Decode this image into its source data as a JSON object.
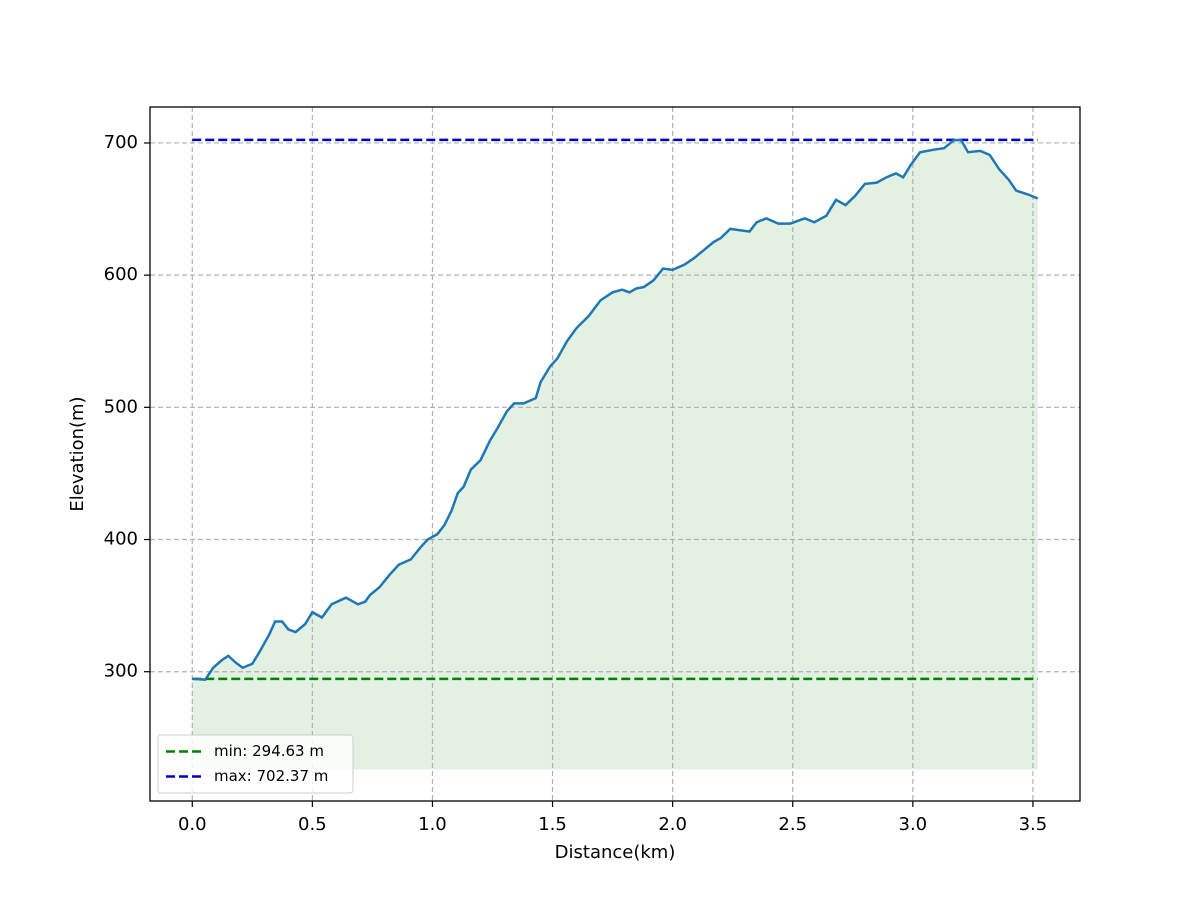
{
  "chart_data": {
    "type": "line",
    "x_label": "Distance(km)",
    "y_label": "Elevation(m)",
    "x": [
      0,
      0.054,
      0.087,
      0.125,
      0.15,
      0.18,
      0.21,
      0.25,
      0.28,
      0.32,
      0.345,
      0.374,
      0.4,
      0.43,
      0.47,
      0.5,
      0.54,
      0.58,
      0.64,
      0.69,
      0.72,
      0.74,
      0.78,
      0.82,
      0.86,
      0.91,
      0.95,
      0.98,
      1.02,
      1.05,
      1.08,
      1.105,
      1.13,
      1.16,
      1.2,
      1.24,
      1.27,
      1.31,
      1.34,
      1.38,
      1.43,
      1.45,
      1.49,
      1.52,
      1.56,
      1.6,
      1.65,
      1.7,
      1.75,
      1.79,
      1.82,
      1.85,
      1.88,
      1.92,
      1.96,
      2.0,
      2.05,
      2.09,
      2.13,
      2.17,
      2.2,
      2.24,
      2.28,
      2.32,
      2.35,
      2.39,
      2.44,
      2.49,
      2.55,
      2.59,
      2.64,
      2.68,
      2.72,
      2.76,
      2.8,
      2.85,
      2.89,
      2.93,
      2.96,
      2.99,
      3.03,
      3.09,
      3.13,
      3.17,
      3.2,
      3.23,
      3.28,
      3.32,
      3.36,
      3.4,
      3.43,
      3.48,
      3.52
    ],
    "series": [
      {
        "color": "#1f77b4",
        "values": [
          294.7,
          294,
          303,
          309,
          312,
          307,
          303,
          306,
          315,
          328,
          338,
          338,
          332,
          330,
          336,
          345,
          341,
          351,
          356,
          351,
          353,
          358,
          364,
          373,
          381,
          385,
          394,
          400,
          404,
          411,
          422,
          435,
          440,
          453,
          460,
          475,
          484,
          497,
          503,
          503,
          507,
          519,
          531,
          537,
          550,
          560,
          569,
          581,
          587,
          589,
          587,
          590,
          591,
          596,
          605,
          604,
          608,
          613,
          619,
          625,
          628,
          635,
          634,
          633,
          640,
          643,
          639,
          639,
          643,
          640,
          645,
          657,
          653,
          660,
          669,
          670,
          674,
          677,
          674,
          683,
          693,
          695,
          696,
          702,
          702.37,
          693,
          694,
          691,
          680,
          672,
          664,
          661,
          658
        ]
      }
    ],
    "fill_color": "#c8e3c8",
    "fill_base": 226,
    "reference_lines": [
      {
        "name": "min: 294.63 m",
        "value": 294.63,
        "color": "#008000"
      },
      {
        "name": "max: 702.37 m",
        "value": 702.37,
        "color": "#0000cc"
      }
    ],
    "xlim": [
      -0.176,
      3.696
    ],
    "ylim": [
      202.2,
      727.2
    ],
    "xticks": [
      {
        "value": 0,
        "label": "0.0"
      },
      0.5,
      {
        "value": 1,
        "label": "1.0"
      },
      1.5,
      {
        "value": 2,
        "label": "2.0"
      },
      2.5,
      {
        "value": 3,
        "label": "3.0"
      },
      3.5
    ],
    "yticks": [
      300,
      400,
      500,
      600,
      700
    ],
    "grid": true,
    "legend_position": "lower left"
  }
}
